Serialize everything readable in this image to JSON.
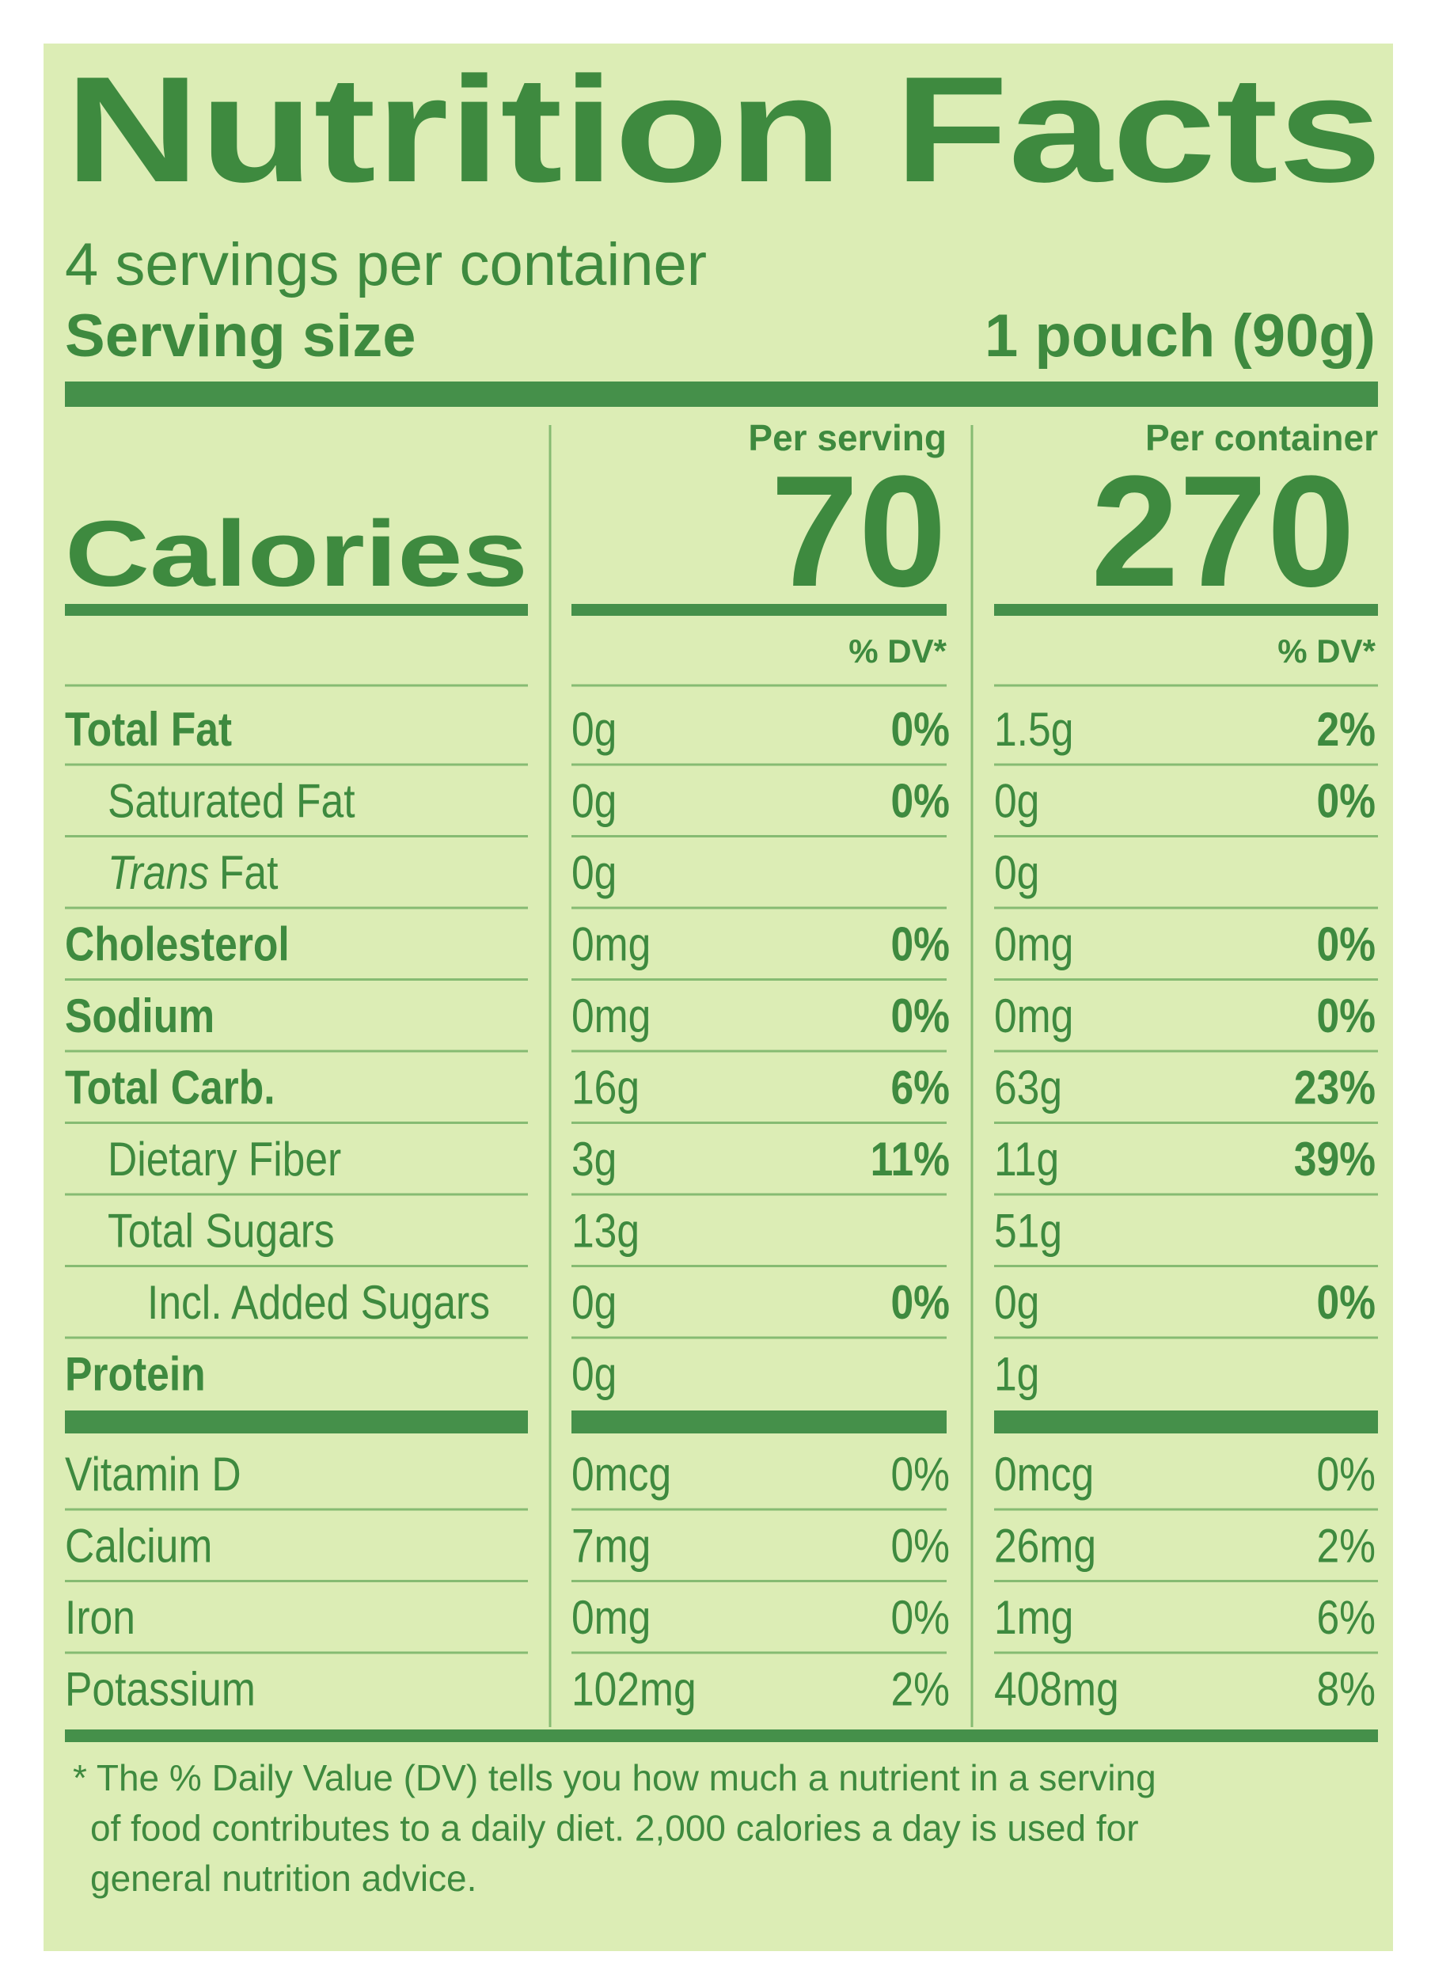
{
  "title": "Nutrition Facts",
  "servings": "4 servings per container",
  "serving_size": {
    "label": "Serving size",
    "value": "1 pouch (90g)"
  },
  "columns": [
    "Per serving",
    "Per container"
  ],
  "calories": {
    "label": "Calories",
    "values": [
      "70",
      "270"
    ]
  },
  "dv_header": "% DV*",
  "nutrients": [
    {
      "name": "Total Fat",
      "bold": true,
      "indent": 0,
      "cells": [
        [
          "0g",
          "0%"
        ],
        [
          "1.5g",
          "2%"
        ]
      ]
    },
    {
      "name": "Saturated Fat",
      "bold": false,
      "indent": 1,
      "cells": [
        [
          "0g",
          "0%"
        ],
        [
          "0g",
          "0%"
        ]
      ]
    },
    {
      "name_italic": "Trans",
      "name": "Fat",
      "bold": false,
      "indent": 1,
      "cells": [
        [
          "0g"
        ],
        [
          "0g"
        ]
      ]
    },
    {
      "name": "Cholesterol",
      "bold": true,
      "indent": 0,
      "cells": [
        [
          "0mg",
          "0%"
        ],
        [
          "0mg",
          "0%"
        ]
      ]
    },
    {
      "name": "Sodium",
      "bold": true,
      "indent": 0,
      "cells": [
        [
          "0mg",
          "0%"
        ],
        [
          "0mg",
          "0%"
        ]
      ]
    },
    {
      "name": "Total Carb.",
      "bold": true,
      "indent": 0,
      "cells": [
        [
          "16g",
          "6%"
        ],
        [
          "63g",
          "23%"
        ]
      ]
    },
    {
      "name": "Dietary Fiber",
      "bold": false,
      "indent": 1,
      "cells": [
        [
          "3g",
          "11%"
        ],
        [
          "11g",
          "39%"
        ]
      ]
    },
    {
      "name": "Total Sugars",
      "bold": false,
      "indent": 1,
      "cells": [
        [
          "13g"
        ],
        [
          "51g"
        ]
      ]
    },
    {
      "name": "Incl. Added Sugars",
      "bold": false,
      "indent": 2,
      "cells": [
        [
          "0g",
          "0%"
        ],
        [
          "0g",
          "0%"
        ]
      ]
    },
    {
      "name": "Protein",
      "bold": true,
      "indent": 0,
      "cells": [
        [
          "0g"
        ],
        [
          "1g"
        ]
      ]
    }
  ],
  "vitamins": [
    {
      "name": "Vitamin D",
      "cells": [
        [
          "0mcg",
          "0%"
        ],
        [
          "0mcg",
          "0%"
        ]
      ]
    },
    {
      "name": "Calcium",
      "cells": [
        [
          "7mg",
          "0%"
        ],
        [
          "26mg",
          "2%"
        ]
      ]
    },
    {
      "name": "Iron",
      "cells": [
        [
          "0mg",
          "0%"
        ],
        [
          "1mg",
          "6%"
        ]
      ]
    },
    {
      "name": "Potassium",
      "cells": [
        [
          "102mg",
          "2%"
        ],
        [
          "408mg",
          "8%"
        ]
      ]
    }
  ],
  "footnote": [
    "* The % Daily Value (DV) tells you how much a nutrient in a serving",
    "of food contributes to a daily diet. 2,000 calories a day is used for",
    "general nutrition advice."
  ]
}
